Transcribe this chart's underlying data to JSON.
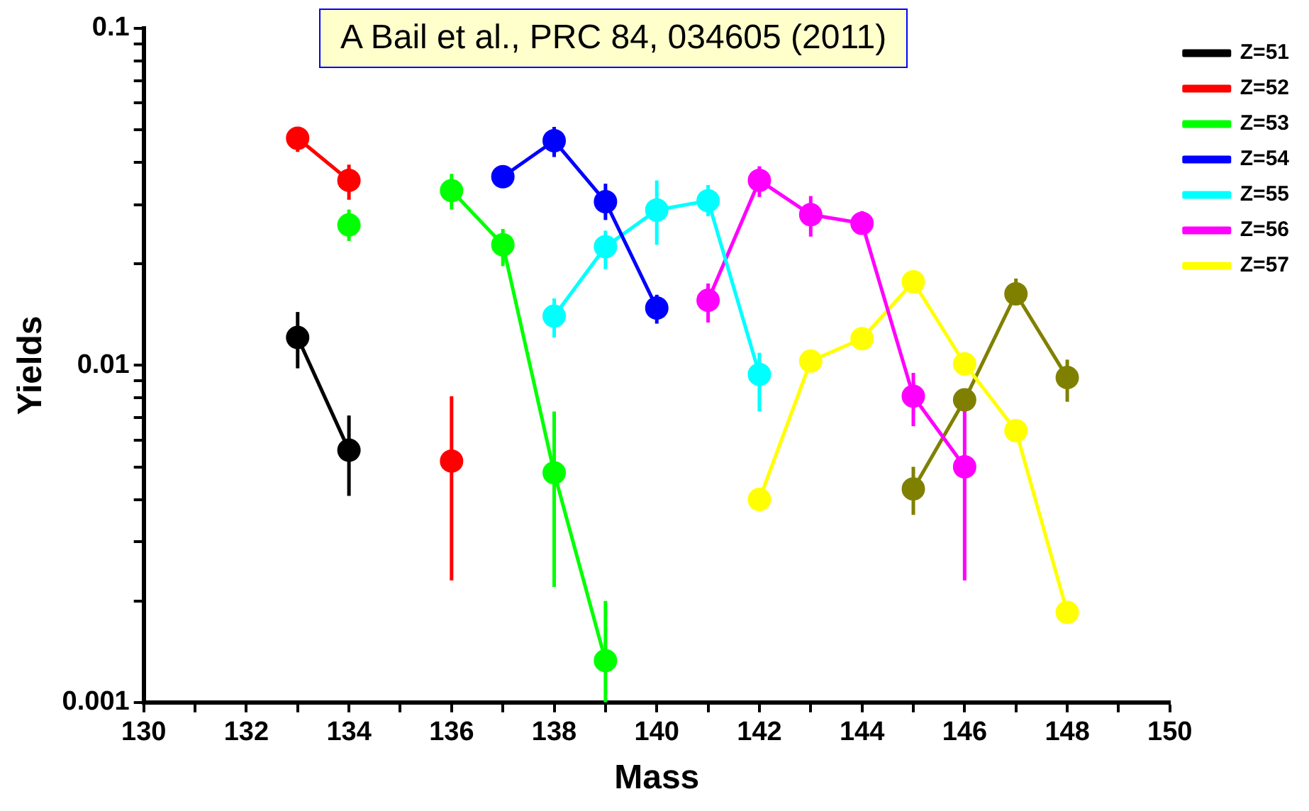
{
  "chart_data": {
    "type": "line",
    "xlabel": "Mass",
    "ylabel": "Yields",
    "log": "y",
    "grid": false,
    "legend": "right",
    "marker": "circle",
    "annotations": [
      "A Bail et al., PRC 84, 034605 (2011)"
    ],
    "xlim": [
      130,
      150
    ],
    "xticks": [
      130,
      {
        "value": 131,
        "label": null
      },
      132,
      {
        "value": 133,
        "label": null
      },
      134,
      {
        "value": 135,
        "label": null
      },
      136,
      {
        "value": 137,
        "label": null
      },
      138,
      {
        "value": 139,
        "label": null
      },
      140,
      {
        "value": 141,
        "label": null
      },
      142,
      {
        "value": 143,
        "label": null
      },
      144,
      {
        "value": 145,
        "label": null
      },
      146,
      {
        "value": 147,
        "label": null
      },
      148,
      {
        "value": 149,
        "label": null
      },
      150
    ],
    "ylim": [
      0.001,
      0.1
    ],
    "yticks": [
      0.001,
      {
        "value": 0.002,
        "label": null
      },
      {
        "value": 0.003,
        "label": null
      },
      {
        "value": 0.004,
        "label": null
      },
      {
        "value": 0.005,
        "label": null
      },
      {
        "value": 0.006,
        "label": null
      },
      {
        "value": 0.007,
        "label": null
      },
      {
        "value": 0.008,
        "label": null
      },
      {
        "value": 0.009,
        "label": null
      },
      0.01,
      {
        "value": 0.02,
        "label": null
      },
      {
        "value": 0.03,
        "label": null
      },
      {
        "value": 0.04,
        "label": null
      },
      {
        "value": 0.05,
        "label": null
      },
      {
        "value": 0.06,
        "label": null
      },
      {
        "value": 0.07,
        "label": null
      },
      {
        "value": 0.08,
        "label": null
      },
      {
        "value": 0.09,
        "label": null
      },
      0.1
    ],
    "series": [
      {
        "name": "Z=51",
        "color": "#000000",
        "x": [
          133,
          134
        ],
        "values": [
          0.0121,
          0.0056
        ],
        "errors": [
          [
            0.0098,
            0.0144
          ],
          [
            0.0041,
            0.0071
          ]
        ]
      },
      {
        "name": "Z=52",
        "color": "#ff0000",
        "x": [
          133,
          134,
          135,
          136
        ],
        "values": [
          0.0472,
          0.0354,
          null,
          0.0052
        ],
        "errors": [
          [
            0.043,
            0.051
          ],
          [
            0.031,
            0.0394
          ],
          null,
          [
            0.0023,
            0.0081
          ]
        ]
      },
      {
        "name": "Z=53",
        "color": "#00ff00",
        "x": [
          134,
          135,
          136,
          137,
          138,
          139
        ],
        "values": [
          0.0261,
          null,
          0.033,
          0.0228,
          0.0048,
          0.00133
        ],
        "errors": [
          [
            0.0234,
            0.029
          ],
          null,
          [
            0.029,
            0.037
          ],
          [
            0.0197,
            0.0254
          ],
          [
            0.0022,
            0.0073
          ],
          [
            0.001,
            0.002
          ]
        ]
      },
      {
        "name": "Z=54",
        "color": "#0000ff",
        "x": [
          137,
          138,
          139,
          140
        ],
        "values": [
          0.0363,
          0.0464,
          0.0306,
          0.0148
        ],
        "errors": [
          null,
          [
            0.0415,
            0.051
          ],
          [
            0.027,
            0.0346
          ],
          [
            0.0133,
            0.0162
          ]
        ]
      },
      {
        "name": "Z=55",
        "color": "#00ffff",
        "x": [
          138,
          139,
          140,
          141,
          142
        ],
        "values": [
          0.014,
          0.0225,
          0.0289,
          0.0308,
          0.0094
        ],
        "errors": [
          [
            0.0121,
            0.0158
          ],
          [
            0.0193,
            0.0251
          ],
          [
            0.0228,
            0.0354
          ],
          [
            0.0277,
            0.0343
          ],
          [
            0.0073,
            0.0109
          ]
        ]
      },
      {
        "name": "Z=56",
        "color": "#ff00ff",
        "x": [
          141,
          142,
          143,
          144,
          145,
          146
        ],
        "values": [
          0.0156,
          0.0354,
          0.028,
          0.0264,
          0.0081,
          0.005
        ],
        "errors": [
          [
            0.0134,
            0.0175
          ],
          [
            0.0316,
            0.039
          ],
          [
            0.0241,
            0.0318
          ],
          [
            0.0245,
            0.0287
          ],
          [
            0.0066,
            0.0095
          ],
          [
            0.0023,
            0.0076
          ]
        ]
      },
      {
        "name": "Z=57",
        "color": "#ffff00",
        "x": [
          142,
          143,
          144,
          145,
          146,
          147,
          148
        ],
        "values": [
          0.004,
          0.0103,
          0.012,
          0.0177,
          0.0101,
          0.0064,
          0.00185
        ]
      },
      {
        "color": "#808000",
        "x": [
          145,
          146,
          147,
          148
        ],
        "values": [
          0.0043,
          0.0079,
          0.0163,
          0.0092
        ],
        "errors": [
          [
            0.0036,
            0.005
          ],
          [
            0.0073,
            0.0085
          ],
          [
            0.0151,
            0.0181
          ],
          [
            0.0078,
            0.0104
          ]
        ]
      }
    ]
  }
}
